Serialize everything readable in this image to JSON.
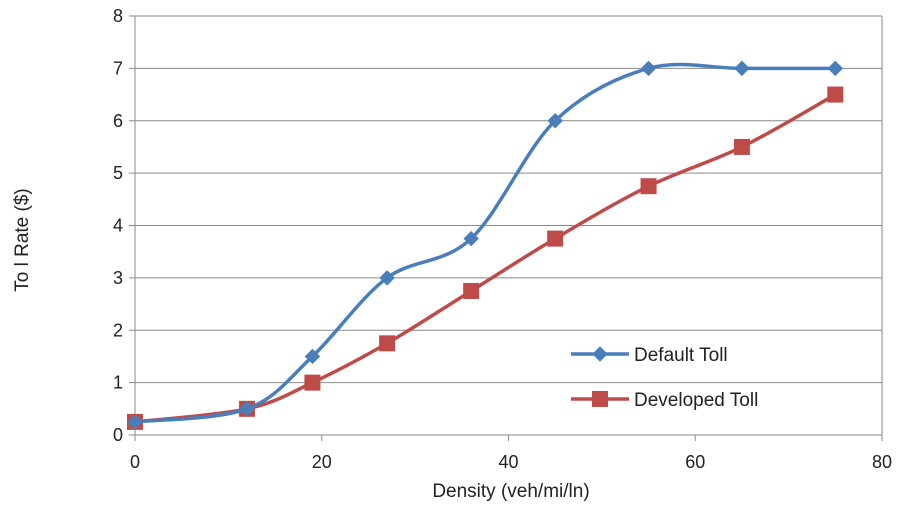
{
  "chart_data": {
    "type": "line",
    "title": "",
    "xlabel": "Density (veh/mi/ln)",
    "ylabel": "To l Rate ($)",
    "xlim": [
      0,
      80
    ],
    "ylim": [
      0,
      8
    ],
    "x_ticks": [
      "0",
      "20",
      "40",
      "60",
      "80"
    ],
    "y_ticks": [
      "0",
      "1",
      "2",
      "3",
      "4",
      "5",
      "6",
      "7",
      "8"
    ],
    "grid": "horizontal",
    "legend_position": "lower-right",
    "smooth": true,
    "series": [
      {
        "name": "Default Toll",
        "color": "#4a7ebb",
        "marker": "diamond",
        "points": [
          {
            "x": 0,
            "y": 0.25
          },
          {
            "x": 12,
            "y": 0.5
          },
          {
            "x": 19,
            "y": 1.5
          },
          {
            "x": 27,
            "y": 3.0
          },
          {
            "x": 36,
            "y": 3.75
          },
          {
            "x": 45,
            "y": 6.0
          },
          {
            "x": 55,
            "y": 7.0
          },
          {
            "x": 65,
            "y": 7.0
          },
          {
            "x": 75,
            "y": 7.0
          }
        ]
      },
      {
        "name": "Developed Toll",
        "color": "#be4b48",
        "marker": "square",
        "points": [
          {
            "x": 0,
            "y": 0.25
          },
          {
            "x": 12,
            "y": 0.5
          },
          {
            "x": 19,
            "y": 1.0
          },
          {
            "x": 27,
            "y": 1.75
          },
          {
            "x": 36,
            "y": 2.75
          },
          {
            "x": 45,
            "y": 3.75
          },
          {
            "x": 55,
            "y": 4.75
          },
          {
            "x": 65,
            "y": 5.5
          },
          {
            "x": 75,
            "y": 6.5
          }
        ]
      }
    ]
  }
}
